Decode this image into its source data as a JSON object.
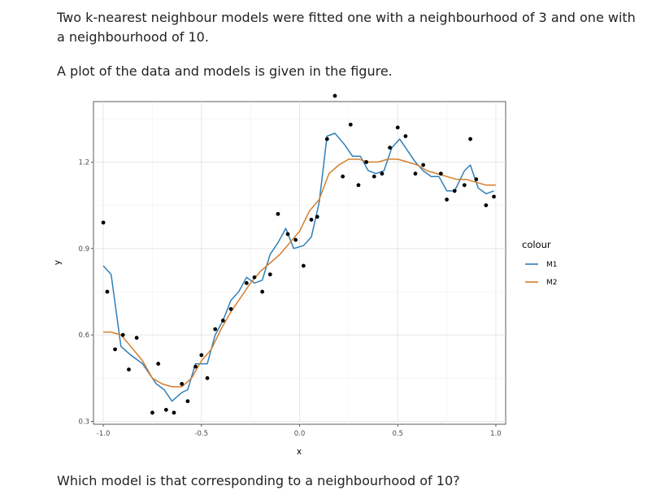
{
  "question": {
    "intro": "Two k-nearest neighbour models were fitted one with a neighbourhood of 3 and one with a neighbourhood of 10.",
    "figure_text": "A plot of the data and models is given in the figure.",
    "prompt": "Which model is that corresponding to a neighbourhood of 10?"
  },
  "chart_data": {
    "type": "scatter",
    "xlabel": "x",
    "ylabel": "y",
    "xlim": [
      -1.05,
      1.05
    ],
    "ylim": [
      0.29,
      1.41
    ],
    "x_ticks": [
      -1.0,
      -0.5,
      0.0,
      0.5,
      1.0
    ],
    "x_tick_labels": [
      "-1.0",
      "-0.5",
      "0.0",
      "0.5",
      "1.0"
    ],
    "y_ticks": [
      0.3,
      0.6,
      0.9,
      1.2
    ],
    "y_tick_labels": [
      "0.3",
      "0.6",
      "0.9",
      "1.2"
    ],
    "grid": true,
    "legend": {
      "title": "colour",
      "position": "right"
    },
    "points": [
      [
        -1.0,
        0.99
      ],
      [
        -0.98,
        0.75
      ],
      [
        -0.94,
        0.55
      ],
      [
        -0.9,
        0.6
      ],
      [
        -0.87,
        0.48
      ],
      [
        -0.83,
        0.59
      ],
      [
        -0.75,
        0.33
      ],
      [
        -0.72,
        0.5
      ],
      [
        -0.68,
        0.34
      ],
      [
        -0.64,
        0.33
      ],
      [
        -0.6,
        0.43
      ],
      [
        -0.57,
        0.37
      ],
      [
        -0.53,
        0.49
      ],
      [
        -0.5,
        0.53
      ],
      [
        -0.47,
        0.45
      ],
      [
        -0.43,
        0.62
      ],
      [
        -0.39,
        0.65
      ],
      [
        -0.35,
        0.69
      ],
      [
        -0.27,
        0.78
      ],
      [
        -0.23,
        0.8
      ],
      [
        -0.19,
        0.75
      ],
      [
        -0.15,
        0.81
      ],
      [
        -0.11,
        1.02
      ],
      [
        -0.06,
        0.95
      ],
      [
        -0.02,
        0.93
      ],
      [
        0.02,
        0.84
      ],
      [
        0.06,
        1.0
      ],
      [
        0.09,
        1.01
      ],
      [
        0.14,
        1.28
      ],
      [
        0.18,
        1.43
      ],
      [
        0.22,
        1.15
      ],
      [
        0.26,
        1.33
      ],
      [
        0.3,
        1.12
      ],
      [
        0.34,
        1.2
      ],
      [
        0.38,
        1.15
      ],
      [
        0.42,
        1.16
      ],
      [
        0.46,
        1.25
      ],
      [
        0.5,
        1.32
      ],
      [
        0.54,
        1.29
      ],
      [
        0.59,
        1.16
      ],
      [
        0.63,
        1.19
      ],
      [
        0.72,
        1.16
      ],
      [
        0.75,
        1.07
      ],
      [
        0.79,
        1.1
      ],
      [
        0.84,
        1.12
      ],
      [
        0.87,
        1.28
      ],
      [
        0.9,
        1.14
      ],
      [
        0.95,
        1.05
      ],
      [
        0.99,
        1.08
      ]
    ],
    "series": [
      {
        "name": "M1",
        "color": "#2e7fb8",
        "values": [
          [
            -1.0,
            0.84
          ],
          [
            -0.96,
            0.81
          ],
          [
            -0.91,
            0.56
          ],
          [
            -0.86,
            0.53
          ],
          [
            -0.8,
            0.5
          ],
          [
            -0.73,
            0.43
          ],
          [
            -0.69,
            0.41
          ],
          [
            -0.65,
            0.37
          ],
          [
            -0.6,
            0.4
          ],
          [
            -0.57,
            0.41
          ],
          [
            -0.53,
            0.5
          ],
          [
            -0.5,
            0.5
          ],
          [
            -0.47,
            0.5
          ],
          [
            -0.43,
            0.6
          ],
          [
            -0.39,
            0.65
          ],
          [
            -0.35,
            0.72
          ],
          [
            -0.31,
            0.75
          ],
          [
            -0.27,
            0.8
          ],
          [
            -0.23,
            0.78
          ],
          [
            -0.19,
            0.79
          ],
          [
            -0.15,
            0.88
          ],
          [
            -0.11,
            0.92
          ],
          [
            -0.07,
            0.97
          ],
          [
            -0.03,
            0.9
          ],
          [
            0.02,
            0.91
          ],
          [
            0.06,
            0.94
          ],
          [
            0.1,
            1.06
          ],
          [
            0.14,
            1.29
          ],
          [
            0.18,
            1.3
          ],
          [
            0.23,
            1.26
          ],
          [
            0.27,
            1.22
          ],
          [
            0.31,
            1.22
          ],
          [
            0.35,
            1.17
          ],
          [
            0.39,
            1.16
          ],
          [
            0.43,
            1.17
          ],
          [
            0.47,
            1.25
          ],
          [
            0.51,
            1.28
          ],
          [
            0.55,
            1.24
          ],
          [
            0.59,
            1.2
          ],
          [
            0.63,
            1.17
          ],
          [
            0.67,
            1.15
          ],
          [
            0.71,
            1.15
          ],
          [
            0.75,
            1.1
          ],
          [
            0.79,
            1.1
          ],
          [
            0.84,
            1.17
          ],
          [
            0.87,
            1.19
          ],
          [
            0.91,
            1.11
          ],
          [
            0.95,
            1.09
          ],
          [
            0.99,
            1.1
          ]
        ]
      },
      {
        "name": "M2",
        "color": "#d47e2d",
        "values": [
          [
            -1.0,
            0.61
          ],
          [
            -0.96,
            0.61
          ],
          [
            -0.91,
            0.6
          ],
          [
            -0.86,
            0.56
          ],
          [
            -0.8,
            0.51
          ],
          [
            -0.75,
            0.45
          ],
          [
            -0.7,
            0.43
          ],
          [
            -0.65,
            0.42
          ],
          [
            -0.6,
            0.42
          ],
          [
            -0.55,
            0.45
          ],
          [
            -0.5,
            0.51
          ],
          [
            -0.45,
            0.55
          ],
          [
            -0.4,
            0.62
          ],
          [
            -0.35,
            0.68
          ],
          [
            -0.3,
            0.73
          ],
          [
            -0.25,
            0.78
          ],
          [
            -0.2,
            0.82
          ],
          [
            -0.15,
            0.85
          ],
          [
            -0.1,
            0.88
          ],
          [
            -0.05,
            0.92
          ],
          [
            0.0,
            0.96
          ],
          [
            0.05,
            1.03
          ],
          [
            0.1,
            1.07
          ],
          [
            0.15,
            1.16
          ],
          [
            0.2,
            1.19
          ],
          [
            0.25,
            1.21
          ],
          [
            0.3,
            1.21
          ],
          [
            0.35,
            1.2
          ],
          [
            0.4,
            1.2
          ],
          [
            0.45,
            1.21
          ],
          [
            0.5,
            1.21
          ],
          [
            0.55,
            1.2
          ],
          [
            0.6,
            1.19
          ],
          [
            0.65,
            1.17
          ],
          [
            0.7,
            1.16
          ],
          [
            0.75,
            1.15
          ],
          [
            0.8,
            1.14
          ],
          [
            0.85,
            1.14
          ],
          [
            0.9,
            1.13
          ],
          [
            0.95,
            1.12
          ],
          [
            1.0,
            1.12
          ]
        ]
      }
    ]
  }
}
